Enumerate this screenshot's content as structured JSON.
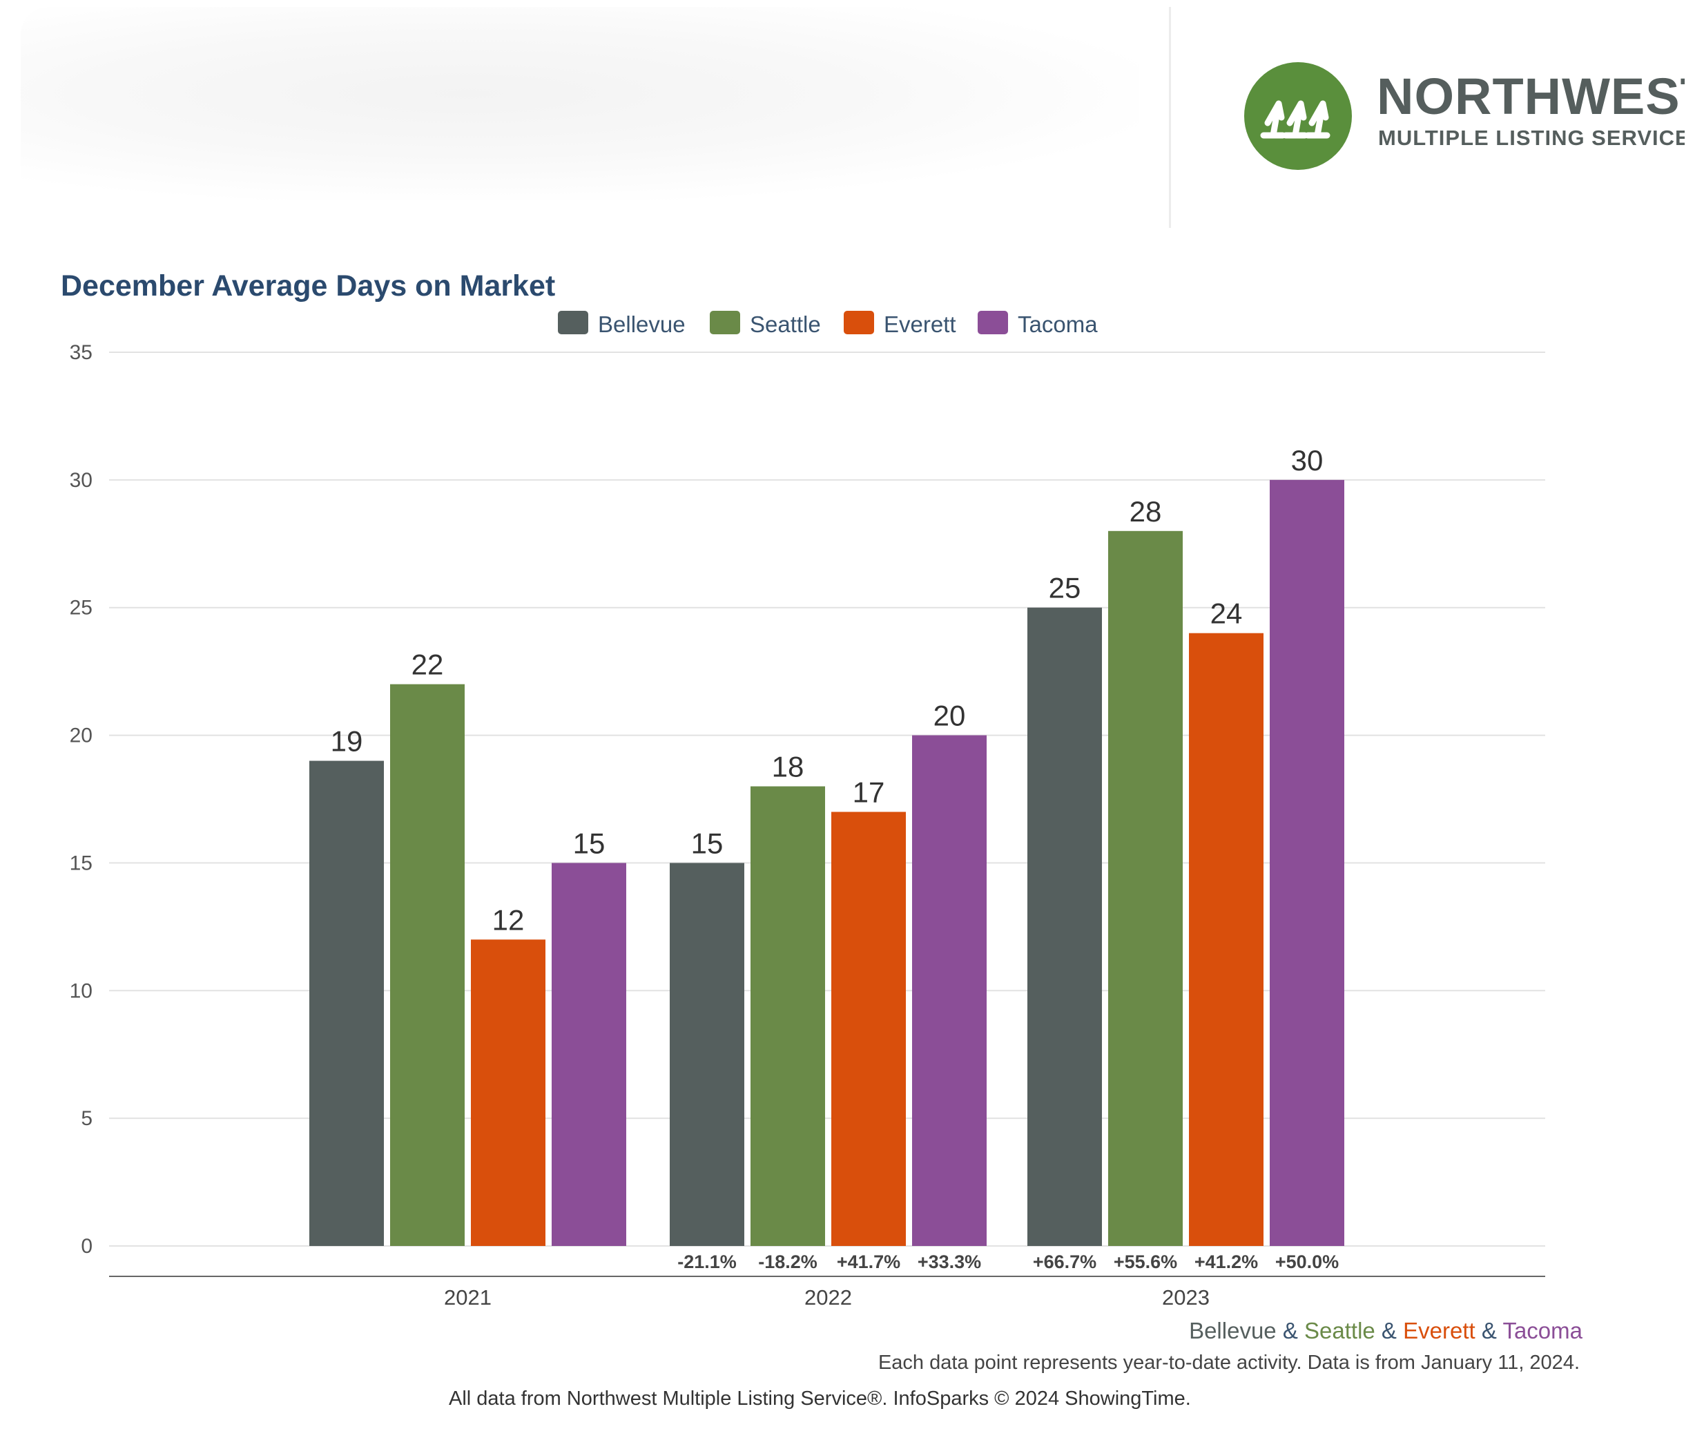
{
  "header": {
    "logo_name": "NORTHWEST",
    "logo_sub": "MULTIPLE LISTING SERVICE.",
    "logo_color": "#5a8f3c"
  },
  "chart_data": {
    "type": "bar",
    "title": "December Average Days on Market",
    "categories": [
      "2021",
      "2022",
      "2023"
    ],
    "series": [
      {
        "name": "Bellevue",
        "color": "#555f5e",
        "values": [
          19,
          15,
          25
        ],
        "change": [
          "",
          "-21.1%",
          "+66.7%"
        ]
      },
      {
        "name": "Seattle",
        "color": "#6a8a48",
        "values": [
          22,
          18,
          28
        ],
        "change": [
          "",
          "-18.2%",
          "+55.6%"
        ]
      },
      {
        "name": "Everett",
        "color": "#d94f0c",
        "values": [
          12,
          17,
          24
        ],
        "change": [
          "",
          "+41.7%",
          "+41.2%"
        ]
      },
      {
        "name": "Tacoma",
        "color": "#8b4e97",
        "values": [
          15,
          20,
          30
        ],
        "change": [
          "",
          "+33.3%",
          "+50.0%"
        ]
      }
    ],
    "ylim": [
      0,
      35
    ],
    "yticks": [
      0,
      5,
      10,
      15,
      20,
      25,
      30,
      35
    ],
    "grid": true,
    "legend": "top-center"
  },
  "footer": {
    "cities": [
      {
        "text": "Bellevue",
        "color": "#555f5e"
      },
      {
        "text": " & ",
        "color": "#3a5470"
      },
      {
        "text": "Seattle",
        "color": "#6a8a48"
      },
      {
        "text": " & ",
        "color": "#3a5470"
      },
      {
        "text": "Everett",
        "color": "#d94f0c"
      },
      {
        "text": " & ",
        "color": "#3a5470"
      },
      {
        "text": "Tacoma",
        "color": "#8b4e97"
      }
    ],
    "note": "Each data point represents year-to-date activity. Data is from January 11, 2024.",
    "source": "All data from Northwest Multiple Listing Service®. InfoSparks © 2024 ShowingTime."
  }
}
